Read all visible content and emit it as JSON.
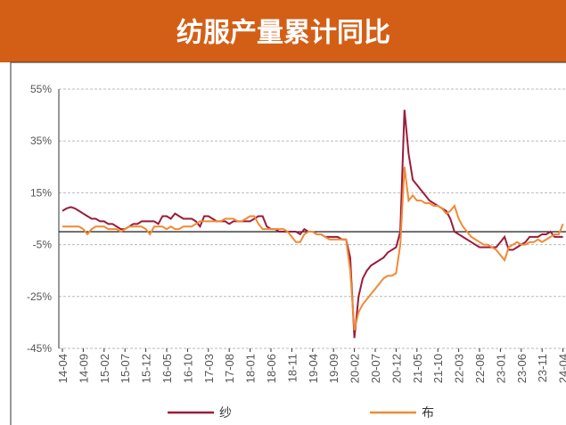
{
  "chart_data": {
    "type": "line",
    "title": "纺服产量累计同比",
    "categories": [
      "14-04",
      null,
      null,
      null,
      null,
      "14-09",
      null,
      null,
      null,
      null,
      "15-02",
      null,
      null,
      null,
      null,
      "15-07",
      null,
      null,
      null,
      null,
      "15-12",
      null,
      null,
      null,
      null,
      "16-05",
      null,
      null,
      null,
      null,
      "16-10",
      null,
      null,
      null,
      null,
      "17-03",
      null,
      null,
      null,
      null,
      "17-08",
      null,
      null,
      null,
      null,
      "18-01",
      null,
      null,
      null,
      null,
      "18-06",
      null,
      null,
      null,
      null,
      "18-11",
      null,
      null,
      null,
      null,
      "19-04",
      null,
      null,
      null,
      null,
      "19-09",
      null,
      null,
      null,
      null,
      "20-02",
      null,
      null,
      null,
      null,
      "20-07",
      null,
      null,
      null,
      null,
      "20-12",
      null,
      null,
      null,
      null,
      "21-05",
      null,
      null,
      null,
      null,
      "21-10",
      null,
      null,
      null,
      null,
      "22-03",
      null,
      null,
      null,
      null,
      "22-08",
      null,
      null,
      null,
      null,
      "23-01",
      null,
      null,
      null,
      null,
      "23-06",
      null,
      null,
      null,
      null,
      "23-11",
      null,
      null,
      null,
      null,
      "24-04"
    ],
    "series": [
      {
        "name": "纱",
        "color": "#9b1b3a",
        "values": [
          8,
          9,
          9.5,
          9,
          8,
          7,
          6,
          5,
          5,
          4,
          4,
          3,
          3,
          2,
          1,
          1,
          2,
          3,
          3,
          4,
          4,
          4,
          4,
          3,
          6,
          6,
          5,
          7,
          6,
          5,
          5,
          5,
          4,
          2,
          6,
          6,
          5,
          4,
          4,
          4,
          3,
          4,
          4,
          4,
          4,
          4,
          5,
          6,
          6,
          2,
          1,
          1,
          0,
          0,
          0,
          0,
          0,
          -1,
          1,
          0,
          0,
          -1,
          -1,
          -2,
          -2,
          -2,
          -2,
          -3,
          -3,
          -10,
          -41,
          -25,
          -18,
          -15,
          -13,
          -12,
          -11,
          -10,
          -8,
          -7,
          -6,
          0,
          47,
          30,
          20,
          18,
          16,
          14,
          12,
          11,
          10,
          9,
          8,
          5,
          0,
          -1,
          -2,
          -3,
          -4,
          -5,
          -6,
          -6,
          -6,
          -6,
          -6,
          -4,
          -2,
          -7,
          -7,
          -6,
          -5,
          -4,
          -2,
          -2,
          -2,
          -1,
          -1,
          0,
          -2,
          -2,
          -2
        ]
      },
      {
        "name": "布",
        "color": "#f08a35",
        "values": [
          2,
          2,
          2,
          2,
          2,
          1,
          -1,
          1,
          2,
          2,
          2,
          1,
          1,
          1,
          0,
          1,
          2,
          2,
          2,
          2,
          1,
          -1,
          2,
          2,
          2,
          1,
          2,
          1,
          1,
          2,
          2,
          2,
          3,
          4,
          4,
          4,
          4,
          4,
          4,
          5,
          5,
          5,
          4,
          4,
          5,
          6,
          6,
          3,
          1,
          1,
          1,
          1,
          1,
          1,
          0,
          -2,
          -4,
          -4,
          -1,
          0,
          0,
          -1,
          -1,
          -2,
          -3,
          -3,
          -3,
          -3,
          -3,
          -15,
          -38,
          -31,
          -28,
          -26,
          -24,
          -22,
          -20,
          -18,
          -17,
          -17,
          -16,
          -5,
          25,
          12,
          14,
          12,
          12,
          11,
          11,
          10,
          10,
          9,
          7,
          8,
          10,
          5,
          2,
          0,
          -2,
          -3,
          -4,
          -5,
          -5,
          -6,
          -7,
          -9,
          -11,
          -6,
          -5,
          -4,
          -5,
          -5,
          -4,
          -4,
          -3,
          -4,
          -3,
          -2,
          -1,
          -1,
          3
        ]
      }
    ],
    "ylim": [
      -45,
      55
    ],
    "yticks": [
      {
        "value": 55,
        "label": "55%"
      },
      {
        "value": 35,
        "label": "35%"
      },
      {
        "value": 15,
        "label": "15%"
      },
      {
        "value": -5,
        "label": "-5%"
      },
      {
        "value": -25,
        "label": "-25%"
      },
      {
        "value": -45,
        "label": "-45%"
      }
    ],
    "grid": true
  }
}
